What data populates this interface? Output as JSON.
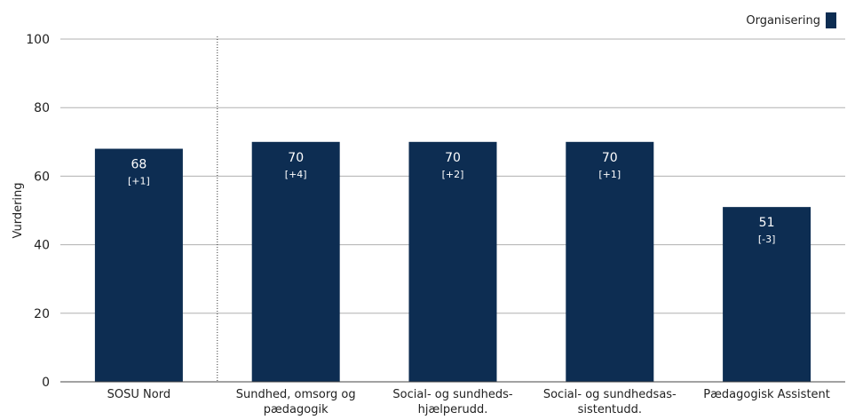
{
  "chart_data": {
    "type": "bar",
    "ylabel": "Vurdering",
    "ylim": [
      0,
      100
    ],
    "yticks": [
      0,
      20,
      40,
      60,
      80,
      100
    ],
    "legend": {
      "position": "top-right",
      "entries": [
        "Organisering"
      ]
    },
    "categories": [
      [
        "SOSU Nord"
      ],
      [
        "Sundhed, omsorg og",
        "pædagogik"
      ],
      [
        "Social- og sundheds-",
        "hjælperudd."
      ],
      [
        "Social- og sundhedsas-",
        "sistentudd."
      ],
      [
        "Pædagogisk Assistent"
      ]
    ],
    "series": [
      {
        "name": "Organisering",
        "color": "#0d2d52",
        "values": [
          68,
          70,
          70,
          70,
          51
        ],
        "changes": [
          "[+1]",
          "[+4]",
          "[+2]",
          "[+1]",
          "[-3]"
        ]
      }
    ],
    "grid": true,
    "separator_after_category": 0
  }
}
